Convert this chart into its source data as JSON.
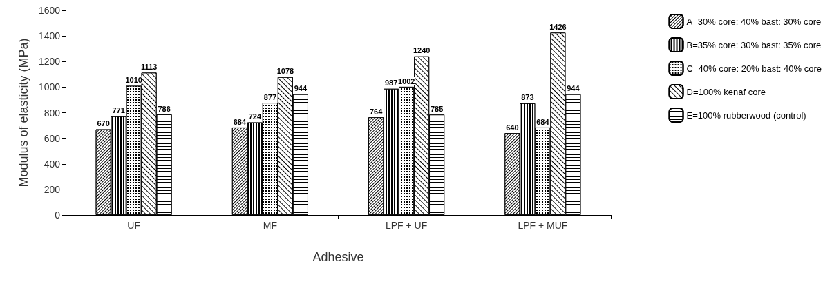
{
  "chart_data": {
    "type": "bar",
    "xlabel": "Adhesive",
    "ylabel": "Modulus of elasticity (MPa)",
    "categories": [
      "UF",
      "MF",
      "LPF + UF",
      "LPF + MUF"
    ],
    "series": [
      {
        "name": "A=30% core: 40% bast: 30% core",
        "color": "#000000",
        "values": [
          670,
          684,
          764,
          640
        ]
      },
      {
        "name": "B=35% core: 30% bast: 35% core",
        "color": "#000000",
        "values": [
          771,
          724,
          987,
          873
        ]
      },
      {
        "name": "C=40% core: 20% bast: 40% core",
        "color": "#000000",
        "values": [
          1010,
          877,
          1002,
          684
        ]
      },
      {
        "name": "D=100% kenaf core",
        "color": "#000000",
        "values": [
          1113,
          1078,
          1240,
          1426
        ]
      },
      {
        "name": "E=100% rubberwood (control)",
        "color": "#000000",
        "values": [
          786,
          944,
          785,
          944
        ]
      }
    ],
    "ylim": [
      0,
      1600
    ],
    "yticks": [
      0,
      200,
      400,
      600,
      800,
      1000,
      1200,
      1400,
      1600
    ],
    "ref_lines": [
      {
        "axis": "y",
        "value": 200,
        "color": "#dddddd",
        "line_style": "dotted"
      }
    ],
    "data_labels": true,
    "grid": false,
    "legend": "right"
  }
}
